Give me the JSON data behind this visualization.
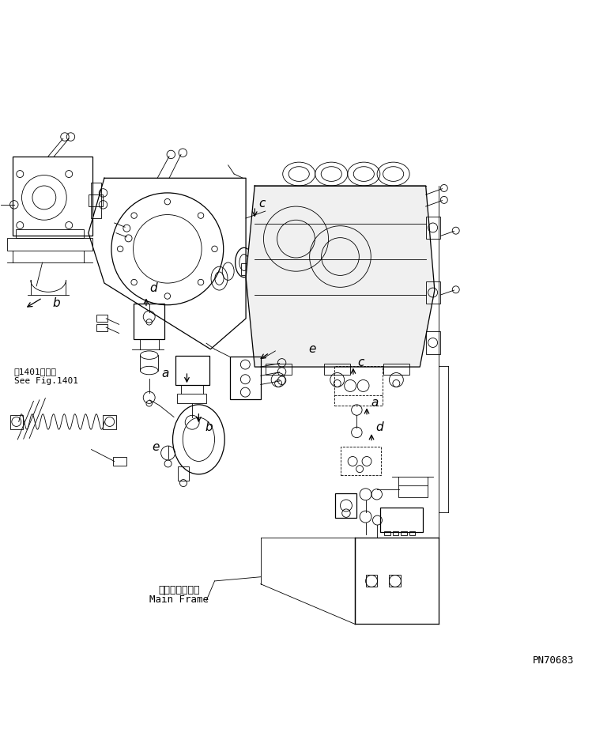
{
  "figure_width": 7.49,
  "figure_height": 9.55,
  "dpi": 100,
  "background_color": "#ffffff",
  "line_color": "#000000",
  "text_color": "#000000",
  "part_number": "PN70683",
  "see_fig_jp": "第1401図参照",
  "see_fig_en": "See Fig.1401",
  "main_frame_jp": "メインフレーム",
  "main_frame_en": "Main Frame"
}
